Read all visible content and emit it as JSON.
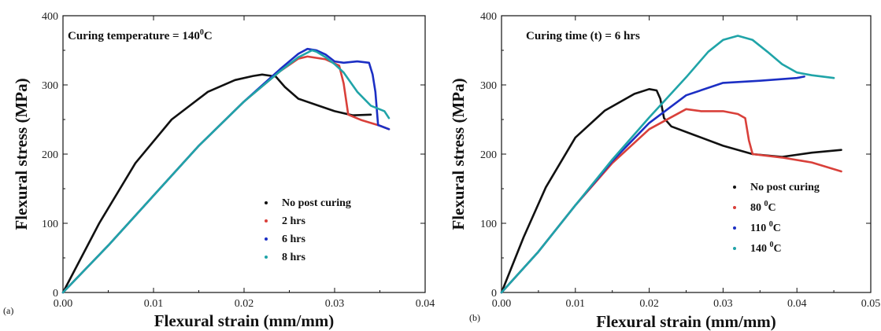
{
  "chart_data": [
    {
      "type": "line",
      "panel_label": "(a)",
      "annotation": {
        "prefix": "Curing temperature = 140",
        "sup": "0",
        "suffix": "C"
      },
      "xlabel": "Flexural strain (mm/mm)",
      "ylabel": "Flexural stress (MPa)",
      "xlim": [
        0,
        0.04
      ],
      "ylim": [
        0,
        400
      ],
      "xticks": [
        "0.00",
        "0.01",
        "0.02",
        "0.03",
        "0.04"
      ],
      "yticks": [
        "0",
        "100",
        "200",
        "300",
        "400"
      ],
      "legend_position": "lower-right",
      "series": [
        {
          "name": "No post curing",
          "color": "#111111",
          "x": [
            0,
            0.004,
            0.008,
            0.012,
            0.016,
            0.019,
            0.021,
            0.022,
            0.0235,
            0.0245,
            0.026,
            0.028,
            0.03,
            0.032,
            0.034
          ],
          "y": [
            0,
            100,
            187,
            250,
            290,
            307,
            313,
            315,
            312,
            297,
            280,
            271,
            262,
            256,
            257
          ]
        },
        {
          "name": "2 hrs",
          "color": "#d9403a",
          "x": [
            0,
            0.005,
            0.01,
            0.015,
            0.02,
            0.024,
            0.026,
            0.027,
            0.029,
            0.0305,
            0.031,
            0.0315,
            0.033,
            0.035,
            0.036
          ],
          "y": [
            0,
            68,
            140,
            212,
            276,
            320,
            338,
            341,
            337,
            328,
            302,
            257,
            249,
            241,
            236
          ]
        },
        {
          "name": "6 hrs",
          "color": "#1c2fc4",
          "x": [
            0,
            0.005,
            0.01,
            0.015,
            0.02,
            0.024,
            0.026,
            0.027,
            0.028,
            0.029,
            0.03,
            0.031,
            0.0325,
            0.0338,
            0.0342,
            0.0345,
            0.0348,
            0.036
          ],
          "y": [
            0,
            68,
            140,
            212,
            276,
            323,
            345,
            352,
            350,
            344,
            334,
            332,
            334,
            332,
            315,
            290,
            242,
            236
          ]
        },
        {
          "name": "8 hrs",
          "color": "#20a4a8",
          "x": [
            0,
            0.005,
            0.01,
            0.015,
            0.02,
            0.024,
            0.026,
            0.0275,
            0.028,
            0.029,
            0.03,
            0.031,
            0.0325,
            0.034,
            0.0355,
            0.036
          ],
          "y": [
            0,
            68,
            140,
            212,
            276,
            320,
            340,
            350,
            348,
            340,
            330,
            318,
            290,
            270,
            262,
            252
          ]
        }
      ]
    },
    {
      "type": "line",
      "panel_label": "(b)",
      "annotation": {
        "prefix": "Curing time (t) = 6 hrs",
        "sup": "",
        "suffix": ""
      },
      "xlabel": "Flexural strain (mm/mm)",
      "ylabel": "Flexural stress (MPa)",
      "xlim": [
        0,
        0.05
      ],
      "ylim": [
        0,
        400
      ],
      "xticks": [
        "0.00",
        "0.01",
        "0.02",
        "0.03",
        "0.04",
        "0.05"
      ],
      "yticks": [
        "0",
        "100",
        "200",
        "300",
        "400"
      ],
      "legend_position": "lower-right",
      "series": [
        {
          "name": "No post curing",
          "name_sup": "",
          "name_suffix": "",
          "color": "#111111",
          "x": [
            0,
            0.003,
            0.006,
            0.01,
            0.014,
            0.018,
            0.02,
            0.021,
            0.0215,
            0.022,
            0.023,
            0.026,
            0.03,
            0.034,
            0.038,
            0.042,
            0.046
          ],
          "y": [
            0,
            80,
            152,
            224,
            263,
            287,
            294,
            292,
            280,
            252,
            240,
            228,
            212,
            200,
            196,
            202,
            206
          ]
        },
        {
          "name": "80 ",
          "name_sup": "0",
          "name_suffix": "C",
          "color": "#d9403a",
          "x": [
            0,
            0.005,
            0.01,
            0.015,
            0.02,
            0.025,
            0.027,
            0.03,
            0.032,
            0.033,
            0.0335,
            0.034,
            0.038,
            0.042,
            0.046
          ],
          "y": [
            0,
            59,
            126,
            187,
            236,
            265,
            262,
            262,
            258,
            252,
            220,
            200,
            195,
            188,
            175
          ]
        },
        {
          "name": "110 ",
          "name_sup": "0",
          "name_suffix": "C",
          "color": "#1c2fc4",
          "x": [
            0,
            0.005,
            0.01,
            0.015,
            0.02,
            0.025,
            0.03,
            0.035,
            0.04,
            0.041
          ],
          "y": [
            0,
            59,
            126,
            190,
            245,
            285,
            303,
            306,
            310,
            312
          ]
        },
        {
          "name": "140 ",
          "name_sup": "0",
          "name_suffix": "C",
          "color": "#20a4a8",
          "x": [
            0,
            0.005,
            0.01,
            0.015,
            0.02,
            0.025,
            0.028,
            0.03,
            0.032,
            0.034,
            0.036,
            0.038,
            0.04,
            0.042,
            0.045
          ],
          "y": [
            0,
            59,
            126,
            192,
            253,
            311,
            348,
            365,
            371,
            365,
            348,
            330,
            318,
            314,
            310
          ]
        }
      ]
    }
  ]
}
